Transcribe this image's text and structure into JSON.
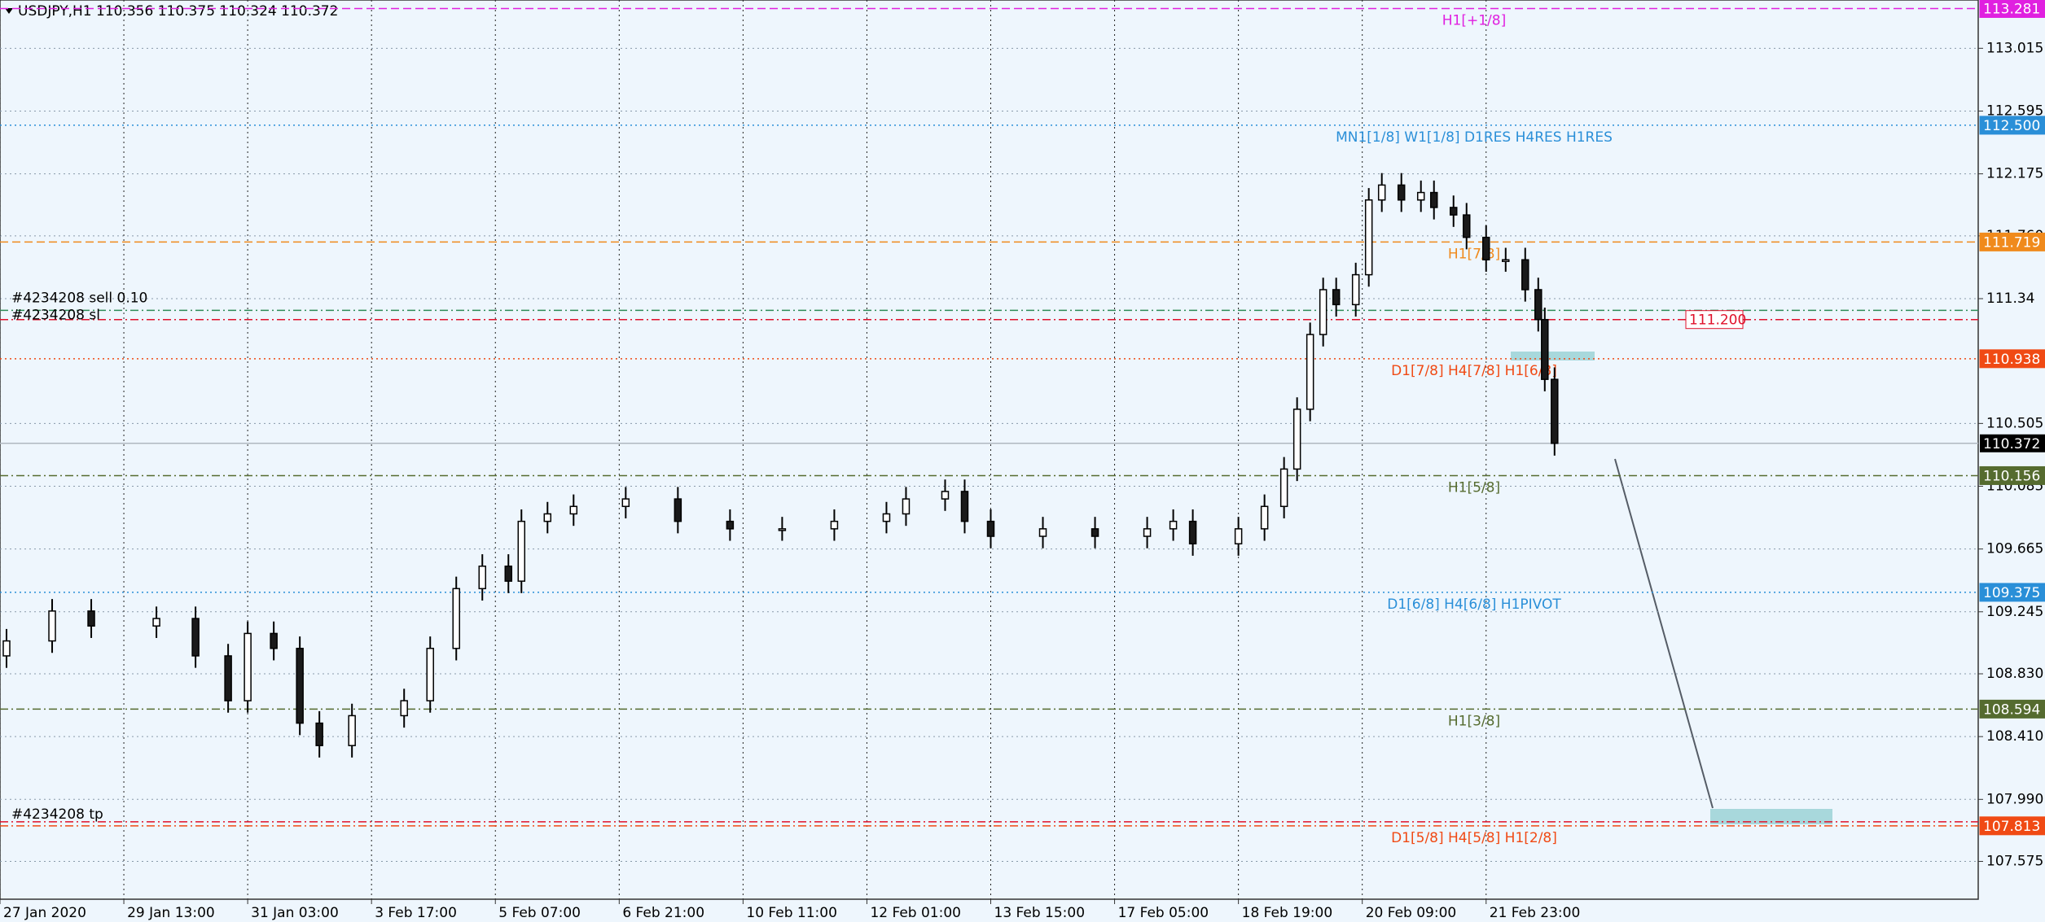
{
  "header": "USDJPY,H1  110.356 110.375 110.324 110.372",
  "chart_data": {
    "type": "candlestick",
    "x": [
      2,
      16,
      28,
      48,
      60,
      70,
      76,
      84,
      92,
      98,
      108,
      124,
      132,
      140,
      148,
      156,
      160,
      168,
      176,
      192,
      208,
      224,
      240,
      256,
      272,
      278,
      290,
      296,
      304,
      320,
      336,
      352,
      360,
      366,
      380,
      388,
      394,
      398,
      402,
      406,
      410,
      416,
      420,
      424,
      430,
      436,
      440,
      446,
      450,
      456,
      462,
      468,
      472,
      474,
      477
    ],
    "open": [
      108.95,
      109.05,
      109.25,
      109.15,
      109.2,
      108.95,
      108.65,
      109.1,
      109.0,
      108.5,
      108.35,
      108.55,
      108.65,
      109.0,
      109.4,
      109.55,
      109.45,
      109.85,
      109.9,
      109.95,
      110.0,
      109.85,
      109.8,
      109.8,
      109.85,
      109.9,
      110.0,
      110.05,
      109.85,
      109.75,
      109.8,
      109.75,
      109.8,
      109.85,
      109.7,
      109.8,
      109.95,
      110.2,
      110.6,
      111.1,
      111.4,
      111.3,
      111.5,
      112.0,
      112.1,
      112.0,
      112.05,
      111.95,
      111.9,
      111.75,
      111.6,
      111.6,
      111.4,
      111.2,
      110.8
    ],
    "high": [
      109.13,
      109.33,
      109.33,
      109.28,
      109.28,
      109.03,
      109.18,
      109.18,
      109.08,
      108.58,
      108.63,
      108.73,
      109.08,
      109.48,
      109.63,
      109.63,
      109.93,
      109.98,
      110.03,
      110.08,
      110.08,
      109.93,
      109.88,
      109.93,
      109.98,
      110.08,
      110.13,
      110.13,
      109.93,
      109.88,
      109.88,
      109.88,
      109.93,
      109.93,
      109.88,
      110.03,
      110.28,
      110.68,
      111.18,
      111.48,
      111.48,
      111.58,
      112.08,
      112.18,
      112.18,
      112.13,
      112.13,
      112.03,
      111.98,
      111.83,
      111.68,
      111.68,
      111.48,
      111.28,
      110.88
    ],
    "low": [
      108.87,
      108.97,
      109.07,
      109.07,
      108.87,
      108.57,
      108.57,
      108.92,
      108.42,
      108.27,
      108.27,
      108.47,
      108.57,
      108.92,
      109.32,
      109.37,
      109.37,
      109.77,
      109.82,
      109.87,
      109.77,
      109.72,
      109.72,
      109.72,
      109.77,
      109.82,
      109.92,
      109.77,
      109.67,
      109.67,
      109.67,
      109.67,
      109.72,
      109.62,
      109.62,
      109.72,
      109.87,
      110.12,
      110.52,
      111.02,
      111.22,
      111.22,
      111.42,
      111.92,
      111.92,
      111.92,
      111.87,
      111.82,
      111.67,
      111.52,
      111.52,
      111.32,
      111.12,
      110.72,
      110.29
    ],
    "close": [
      109.05,
      109.25,
      109.15,
      109.2,
      108.95,
      108.65,
      109.1,
      109.0,
      108.5,
      108.35,
      108.55,
      108.65,
      109.0,
      109.4,
      109.55,
      109.45,
      109.85,
      109.9,
      109.95,
      110.0,
      109.85,
      109.8,
      109.8,
      109.85,
      109.9,
      110.0,
      110.05,
      109.85,
      109.75,
      109.8,
      109.75,
      109.8,
      109.85,
      109.7,
      109.8,
      109.95,
      110.2,
      110.6,
      111.1,
      111.4,
      111.3,
      111.5,
      112.0,
      112.1,
      112.0,
      112.05,
      111.95,
      111.9,
      111.75,
      111.6,
      111.6,
      111.4,
      111.2,
      110.8,
      110.372
    ],
    "xlim": [
      0,
      607
    ],
    "ylim": [
      107.322,
      113.338
    ],
    "xticks": [
      {
        "value": 0,
        "label": "27 Jan 2020"
      },
      {
        "value": 38,
        "label": "29 Jan 13:00"
      },
      {
        "value": 76,
        "label": "31 Jan 03:00"
      },
      {
        "value": 114,
        "label": "3 Feb 17:00"
      },
      {
        "value": 152,
        "label": "5 Feb 07:00"
      },
      {
        "value": 190,
        "label": "6 Feb 21:00"
      },
      {
        "value": 228,
        "label": "10 Feb 11:00"
      },
      {
        "value": 266,
        "label": "12 Feb 01:00"
      },
      {
        "value": 304,
        "label": "13 Feb 15:00"
      },
      {
        "value": 342,
        "label": "17 Feb 05:00"
      },
      {
        "value": 380,
        "label": "18 Feb 19:00"
      },
      {
        "value": 418,
        "label": "20 Feb 09:00"
      },
      {
        "value": 456,
        "label": "21 Feb 23:00"
      }
    ],
    "yticks": [
      113.015,
      112.595,
      112.175,
      {
        "value": 111.76,
        "label": "111.760"
      },
      111.34,
      110.505,
      110.085,
      109.665,
      109.245,
      {
        "value": 108.83,
        "label": "108.830"
      },
      {
        "value": 108.41,
        "label": "108.410"
      },
      {
        "value": 107.99,
        "label": "107.990"
      },
      107.575
    ],
    "grid": true,
    "levels": [
      {
        "price": 113.281,
        "color": "#e020e0",
        "style": "dash",
        "text": "H1[+1/8]"
      },
      {
        "price": {
          "value": 112.5,
          "label": "112.500"
        },
        "color": "#2a8fd8",
        "style": "dot",
        "text": "MN1[1/8] W1[1/8] D1RES H4RES H1RES"
      },
      {
        "price": 111.719,
        "color": "#f08a1c",
        "style": "dash",
        "text": "H1[7/8]"
      },
      {
        "price": 110.938,
        "color": "#f04a14",
        "style": "dot",
        "text": "D1[7/8] H4[7/8] H1[6/8]"
      },
      {
        "price": 110.156,
        "color": "#556b2f",
        "style": "dashdot",
        "text": "H1[5/8]"
      },
      {
        "price": 109.375,
        "color": "#2a8fd8",
        "style": "dot",
        "text": "D1[6/8] H4[6/8] H1PIVOT"
      },
      {
        "price": 108.594,
        "color": "#556b2f",
        "style": "dashdot",
        "text": "H1[3/8]"
      },
      {
        "price": 107.813,
        "color": "#f04a14",
        "style": "dashdot",
        "text": "D1[5/8] H4[5/8] H1[2/8]"
      }
    ],
    "current_price": 110.372,
    "orders": [
      {
        "text": "#4234208 sell 0.10",
        "price": 111.262,
        "color": "#2e8b57"
      },
      {
        "text": "#4234208 sl",
        "price": {
          "value": 111.2,
          "label": "111.200"
        },
        "color": "#e0102a"
      },
      {
        "text": "#4234208 tp",
        "price": 107.84,
        "color": "#e0102a"
      }
    ]
  }
}
